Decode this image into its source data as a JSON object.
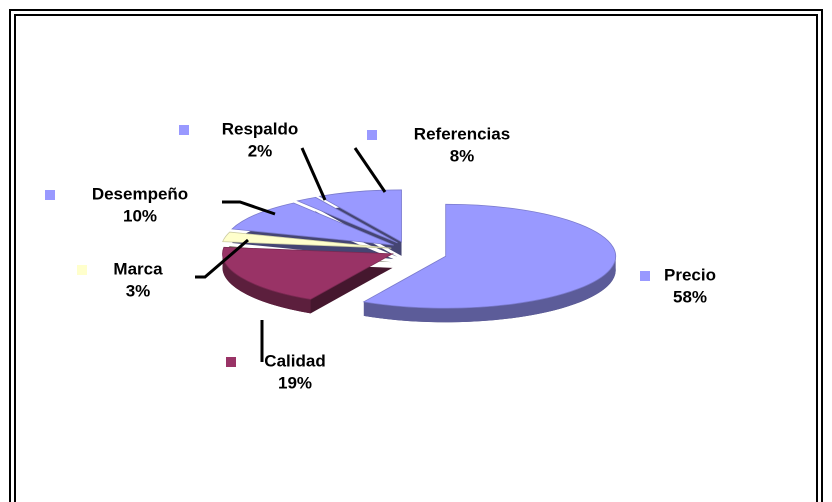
{
  "chart_data": {
    "type": "pie",
    "categories": [
      "Precio",
      "Calidad",
      "Marca",
      "Desempeño",
      "Respaldo",
      "Referencias"
    ],
    "values": [
      58,
      19,
      3,
      10,
      2,
      8
    ],
    "value_labels": [
      "58%",
      "19%",
      "3%",
      "10%",
      "2%",
      "8%"
    ],
    "colors": [
      "#9999ff",
      "#993366",
      "#ffffcc",
      "#9999ff",
      "#9999ff",
      "#9999ff"
    ]
  }
}
